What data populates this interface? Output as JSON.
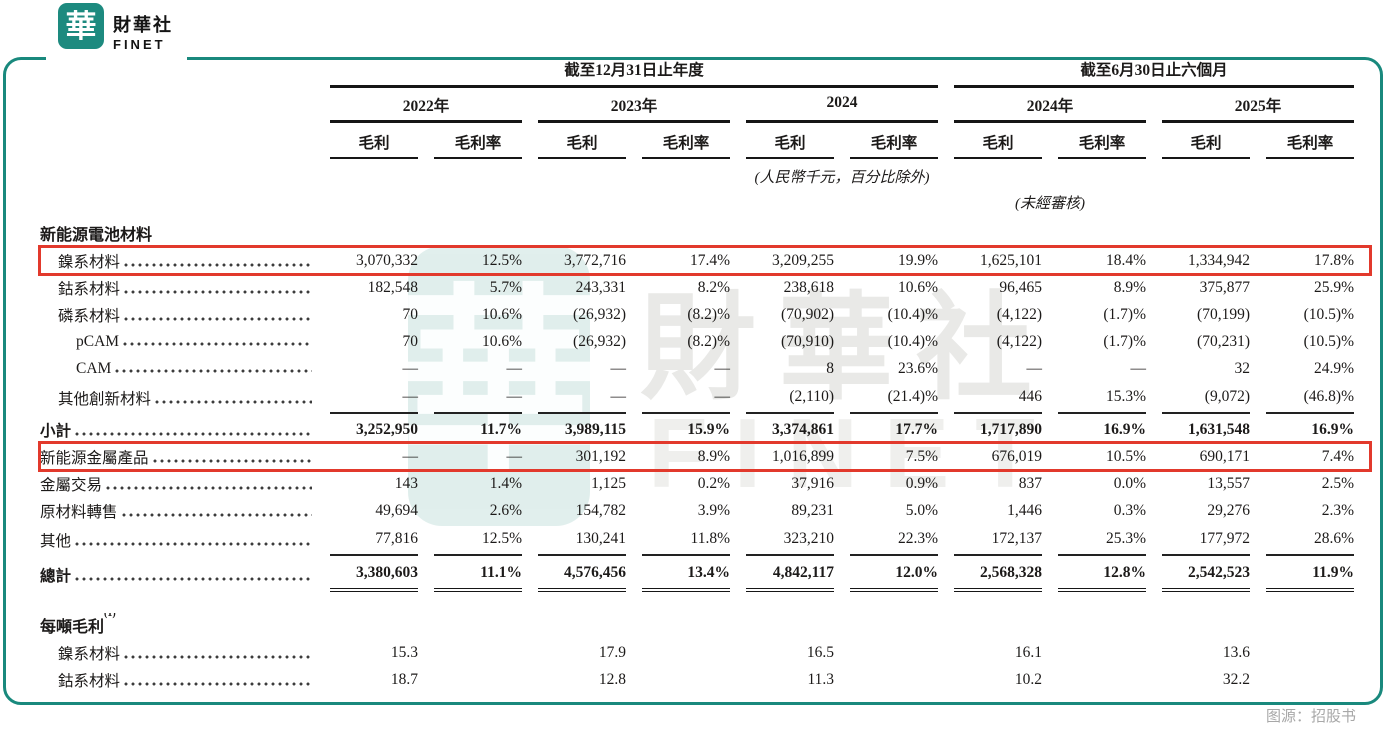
{
  "brand": {
    "logo_char": "華",
    "name_zh": "財華社",
    "name_en": "FINET"
  },
  "watermark": {
    "logo_char": "華",
    "zh": "財華社",
    "en": "FINET"
  },
  "colors": {
    "teal": "#19897d",
    "highlight_red": "#e2392c",
    "caption_gray": "#a8a8a8"
  },
  "header": {
    "group_annual": "截至12月31日止年度",
    "group_interim": "截至6月30日止六個月",
    "years": [
      "2022年",
      "2023年",
      "2024",
      "2024年",
      "2025年"
    ],
    "col_profit": "毛利",
    "col_margin": "毛利率",
    "note_units": "(人民幣千元，百分比除外)",
    "note_unaudited": "(未經審核)"
  },
  "table": {
    "rows": [
      {
        "type": "section",
        "label": "新能源電池材料"
      },
      {
        "type": "data",
        "label": "鎳系材料",
        "indent": 1,
        "redbox": true,
        "values": [
          "3,070,332",
          "12.5%",
          "3,772,716",
          "17.4%",
          "3,209,255",
          "19.9%",
          "1,625,101",
          "18.4%",
          "1,334,942",
          "17.8%"
        ]
      },
      {
        "type": "data",
        "label": "鈷系材料",
        "indent": 1,
        "values": [
          "182,548",
          "5.7%",
          "243,331",
          "8.2%",
          "238,618",
          "10.6%",
          "96,465",
          "8.9%",
          "375,877",
          "25.9%"
        ]
      },
      {
        "type": "data",
        "label": "磷系材料",
        "indent": 1,
        "values": [
          "70",
          "10.6%",
          "(26,932)",
          "(8.2)%",
          "(70,902)",
          "(10.4)%",
          "(4,122)",
          "(1.7)%",
          "(70,199)",
          "(10.5)%"
        ]
      },
      {
        "type": "data",
        "label": "pCAM",
        "indent": 2,
        "values": [
          "70",
          "10.6%",
          "(26,932)",
          "(8.2)%",
          "(70,910)",
          "(10.4)%",
          "(4,122)",
          "(1.7)%",
          "(70,231)",
          "(10.5)%"
        ]
      },
      {
        "type": "data",
        "label": "CAM",
        "indent": 2,
        "values": [
          "—",
          "—",
          "—",
          "—",
          "8",
          "23.6%",
          "—",
          "—",
          "32",
          "24.9%"
        ]
      },
      {
        "type": "data",
        "label": "其他創新材料",
        "indent": 1,
        "sep": true,
        "values": [
          "—",
          "—",
          "—",
          "—",
          "(2,110)",
          "(21.4)%",
          "446",
          "15.3%",
          "(9,072)",
          "(46.8)%"
        ]
      },
      {
        "type": "data",
        "label": "小計",
        "bold": true,
        "values": [
          "3,252,950",
          "11.7%",
          "3,989,115",
          "15.9%",
          "3,374,861",
          "17.7%",
          "1,717,890",
          "16.9%",
          "1,631,548",
          "16.9%"
        ]
      },
      {
        "type": "data",
        "label": "新能源金屬產品",
        "redbox": true,
        "values": [
          "—",
          "—",
          "301,192",
          "8.9%",
          "1,016,899",
          "7.5%",
          "676,019",
          "10.5%",
          "690,171",
          "7.4%"
        ]
      },
      {
        "type": "data",
        "label": "金屬交易",
        "values": [
          "143",
          "1.4%",
          "1,125",
          "0.2%",
          "37,916",
          "0.9%",
          "837",
          "0.0%",
          "13,557",
          "2.5%"
        ]
      },
      {
        "type": "data",
        "label": "原材料轉售",
        "values": [
          "49,694",
          "2.6%",
          "154,782",
          "3.9%",
          "89,231",
          "5.0%",
          "1,446",
          "0.3%",
          "29,276",
          "2.3%"
        ]
      },
      {
        "type": "data",
        "label": "其他",
        "sep": true,
        "values": [
          "77,816",
          "12.5%",
          "130,241",
          "11.8%",
          "323,210",
          "22.3%",
          "172,137",
          "25.3%",
          "177,972",
          "28.6%"
        ]
      },
      {
        "type": "data",
        "label": "總計",
        "bold": true,
        "dunder": true,
        "values": [
          "3,380,603",
          "11.1%",
          "4,576,456",
          "13.4%",
          "4,842,117",
          "12.0%",
          "2,568,328",
          "12.8%",
          "2,542,523",
          "11.9%"
        ]
      },
      {
        "type": "section",
        "label": "每噸毛利",
        "sup": "(1)",
        "gap_before": true
      },
      {
        "type": "data",
        "label": "鎳系材料",
        "indent": 1,
        "values": [
          "15.3",
          "",
          "17.9",
          "",
          "16.5",
          "",
          "16.1",
          "",
          "13.6",
          ""
        ]
      },
      {
        "type": "data",
        "label": "鈷系材料",
        "indent": 1,
        "values": [
          "18.7",
          "",
          "12.8",
          "",
          "11.3",
          "",
          "10.2",
          "",
          "32.2",
          ""
        ]
      }
    ]
  },
  "caption": "图源：招股书"
}
